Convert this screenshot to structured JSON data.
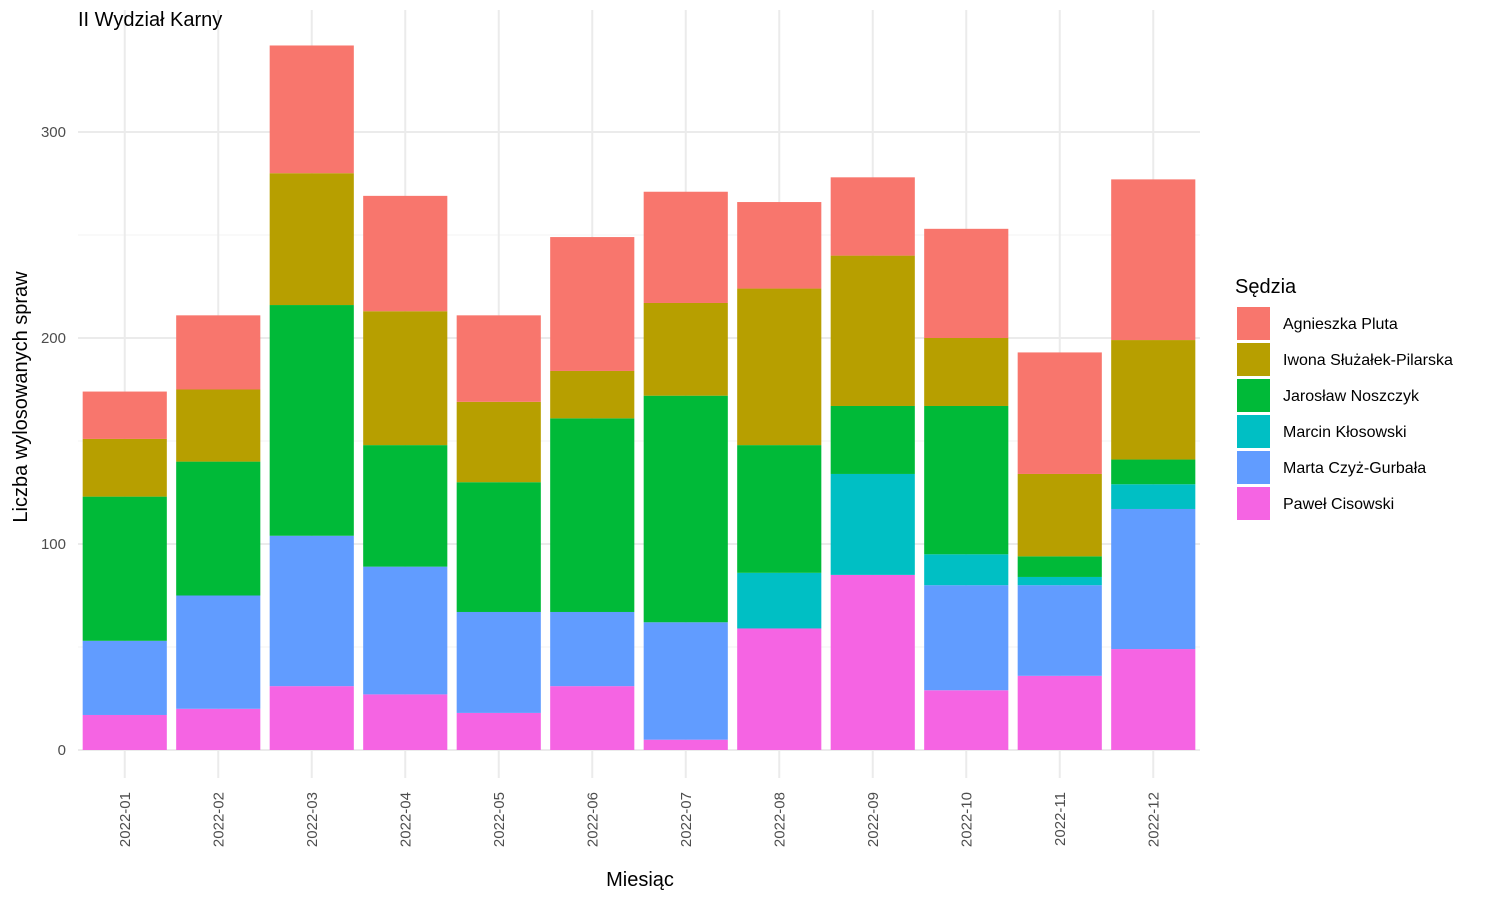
{
  "chart_data": {
    "type": "bar",
    "stacked": true,
    "title": "II Wydział Karny",
    "xlabel": "Miesiąc",
    "ylabel": "Liczba wylosowanych spraw",
    "ylim": [
      0,
      340
    ],
    "yticks": [
      0,
      100,
      200,
      300
    ],
    "grid": true,
    "legend_title": "Sędzia",
    "legend_position": "right",
    "categories": [
      "2022-01",
      "2022-02",
      "2022-03",
      "2022-04",
      "2022-05",
      "2022-06",
      "2022-07",
      "2022-08",
      "2022-09",
      "2022-10",
      "2022-11",
      "2022-12"
    ],
    "series": [
      {
        "name": "Paweł Cisowski",
        "color": "#F564E3",
        "values": [
          17,
          20,
          31,
          27,
          18,
          31,
          5,
          59,
          85,
          29,
          36,
          49
        ]
      },
      {
        "name": "Marta Czyż-Gurbała",
        "color": "#619CFF",
        "values": [
          36,
          55,
          73,
          62,
          49,
          36,
          57,
          0,
          0,
          51,
          44,
          68
        ]
      },
      {
        "name": "Marcin Kłosowski",
        "color": "#00BFC4",
        "values": [
          0,
          0,
          0,
          0,
          0,
          0,
          0,
          27,
          49,
          15,
          4,
          12
        ]
      },
      {
        "name": "Jarosław Noszczyk",
        "color": "#00BA38",
        "values": [
          70,
          65,
          112,
          59,
          63,
          94,
          110,
          62,
          33,
          72,
          10,
          12
        ]
      },
      {
        "name": "Iwona Służałek-Pilarska",
        "color": "#B79F00",
        "values": [
          28,
          35,
          64,
          65,
          39,
          23,
          45,
          76,
          73,
          33,
          40,
          58
        ]
      },
      {
        "name": "Agnieszka Pluta",
        "color": "#F8766D",
        "values": [
          23,
          36,
          62,
          56,
          42,
          65,
          54,
          42,
          38,
          53,
          59,
          78
        ]
      }
    ],
    "legend_order": [
      "Agnieszka Pluta",
      "Iwona Służałek-Pilarska",
      "Jarosław Noszczyk",
      "Marcin Kłosowski",
      "Marta Czyż-Gurbała",
      "Paweł Cisowski"
    ]
  }
}
